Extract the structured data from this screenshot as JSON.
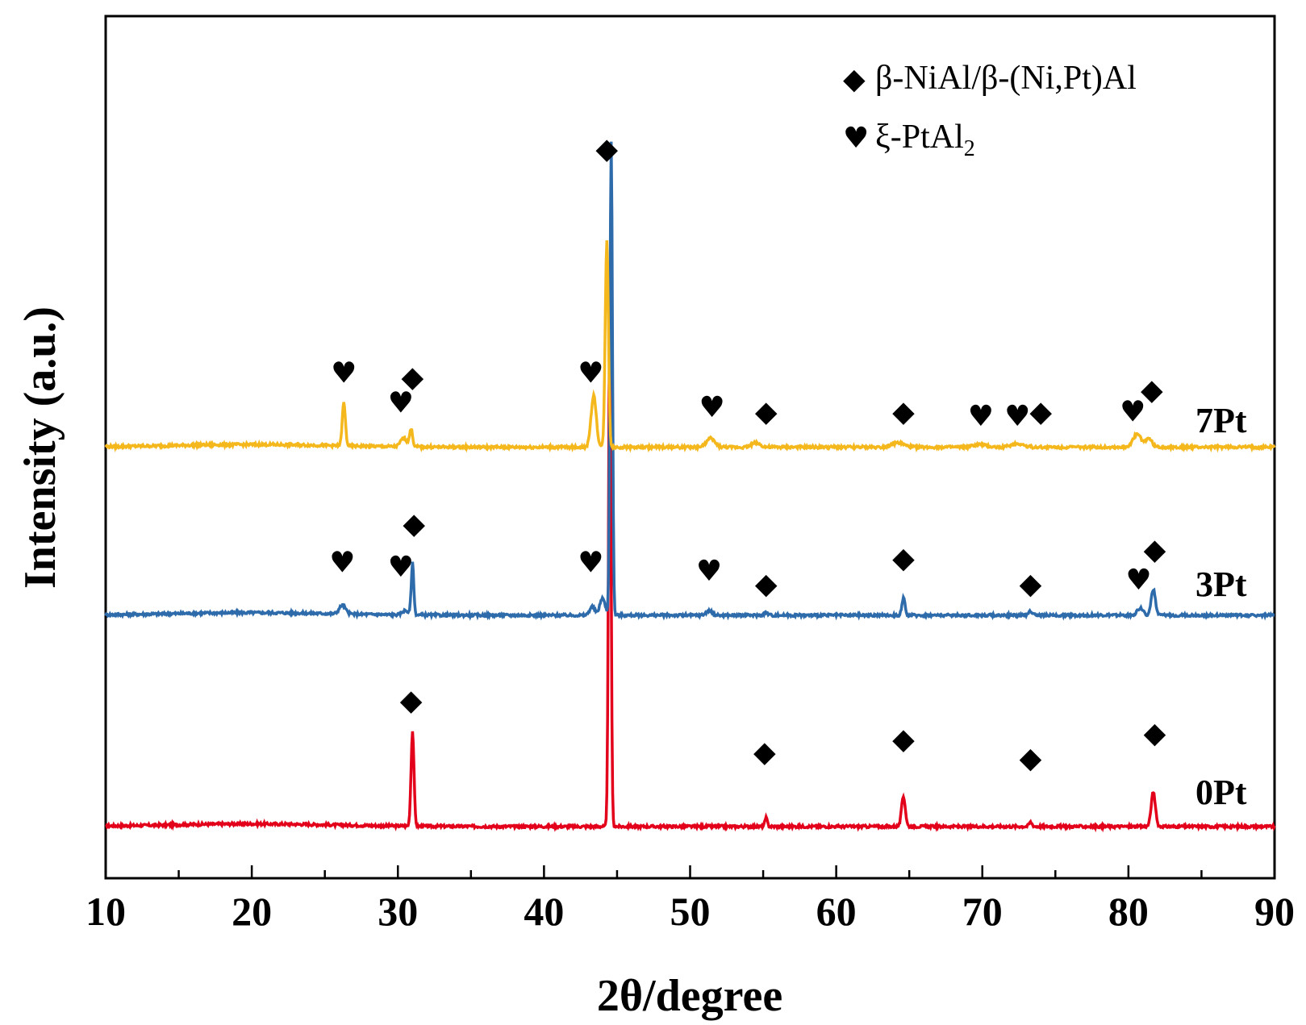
{
  "chart_data": {
    "type": "line",
    "title": "",
    "xlabel": "2θ/degree",
    "ylabel": "Intensity (a.u.)",
    "xlim": [
      10,
      90
    ],
    "ylim": [
      0,
      10
    ],
    "xticks": [
      "10",
      "20",
      "30",
      "40",
      "50",
      "60",
      "70",
      "80",
      "90"
    ],
    "yticks_shown": false,
    "legend": [
      {
        "symbol": "◆",
        "text": "β-NiAl/β-(Ni,Pt)Al",
        "text_sub": ""
      },
      {
        "symbol": "♥",
        "text": "ξ-PtAl",
        "text_sub": "2"
      }
    ],
    "series": [
      {
        "name": "0Pt",
        "color": "#e3001b",
        "baseline": 0.6,
        "peaks": [
          [
            31.0,
            1.1,
            0.14
          ],
          [
            44.5,
            6.0,
            0.12
          ],
          [
            55.2,
            0.1,
            0.12
          ],
          [
            64.6,
            0.35,
            0.18
          ],
          [
            73.3,
            0.05,
            0.15
          ],
          [
            81.7,
            0.4,
            0.2
          ]
        ],
        "markers": [
          {
            "x": 30.9,
            "y": 1.95,
            "symbol": "◆"
          },
          {
            "x": 55.1,
            "y": 1.35,
            "symbol": "◆"
          },
          {
            "x": 64.6,
            "y": 1.5,
            "symbol": "◆"
          },
          {
            "x": 73.3,
            "y": 1.28,
            "symbol": "◆"
          },
          {
            "x": 81.8,
            "y": 1.57,
            "symbol": "◆"
          }
        ]
      },
      {
        "name": "3Pt",
        "color": "#2e6bab",
        "baseline": 3.05,
        "peaks": [
          [
            26.2,
            0.1,
            0.3
          ],
          [
            30.5,
            0.05,
            0.3
          ],
          [
            31.0,
            0.6,
            0.12
          ],
          [
            43.3,
            0.1,
            0.25
          ],
          [
            44.0,
            0.2,
            0.25
          ],
          [
            44.6,
            5.5,
            0.12
          ],
          [
            51.3,
            0.05,
            0.3
          ],
          [
            55.2,
            0.03,
            0.2
          ],
          [
            64.6,
            0.2,
            0.15
          ],
          [
            73.3,
            0.05,
            0.2
          ],
          [
            80.8,
            0.08,
            0.3
          ],
          [
            81.7,
            0.3,
            0.2
          ]
        ],
        "markers": [
          {
            "x": 26.2,
            "y": 3.55,
            "symbol": "♥"
          },
          {
            "x": 30.2,
            "y": 3.5,
            "symbol": "♥"
          },
          {
            "x": 31.1,
            "y": 4.0,
            "symbol": "◆"
          },
          {
            "x": 43.2,
            "y": 3.55,
            "symbol": "♥"
          },
          {
            "x": 51.3,
            "y": 3.45,
            "symbol": "♥"
          },
          {
            "x": 55.2,
            "y": 3.3,
            "symbol": "◆"
          },
          {
            "x": 64.6,
            "y": 3.6,
            "symbol": "◆"
          },
          {
            "x": 73.3,
            "y": 3.3,
            "symbol": "◆"
          },
          {
            "x": 80.7,
            "y": 3.35,
            "symbol": "♥"
          },
          {
            "x": 81.8,
            "y": 3.7,
            "symbol": "◆"
          }
        ]
      },
      {
        "name": "7Pt",
        "color": "#f5b81c",
        "baseline": 5.0,
        "peaks": [
          [
            26.3,
            0.5,
            0.15
          ],
          [
            30.4,
            0.1,
            0.3
          ],
          [
            30.9,
            0.2,
            0.15
          ],
          [
            43.4,
            0.6,
            0.25
          ],
          [
            44.3,
            2.4,
            0.15
          ],
          [
            51.4,
            0.1,
            0.4
          ],
          [
            54.5,
            0.05,
            0.4
          ],
          [
            64.2,
            0.05,
            0.6
          ],
          [
            69.8,
            0.03,
            0.6
          ],
          [
            72.4,
            0.04,
            0.6
          ],
          [
            80.6,
            0.15,
            0.4
          ],
          [
            81.4,
            0.1,
            0.3
          ]
        ],
        "markers": [
          {
            "x": 26.3,
            "y": 5.75,
            "symbol": "♥"
          },
          {
            "x": 30.2,
            "y": 5.4,
            "symbol": "♥"
          },
          {
            "x": 31.0,
            "y": 5.7,
            "symbol": "◆"
          },
          {
            "x": 43.2,
            "y": 5.75,
            "symbol": "♥"
          },
          {
            "x": 44.3,
            "y": 8.35,
            "symbol": "◆"
          },
          {
            "x": 51.5,
            "y": 5.35,
            "symbol": "♥"
          },
          {
            "x": 55.2,
            "y": 5.3,
            "symbol": "◆"
          },
          {
            "x": 64.6,
            "y": 5.3,
            "symbol": "◆"
          },
          {
            "x": 69.9,
            "y": 5.25,
            "symbol": "♥"
          },
          {
            "x": 72.4,
            "y": 5.25,
            "symbol": "♥"
          },
          {
            "x": 74.0,
            "y": 5.3,
            "symbol": "◆"
          },
          {
            "x": 80.3,
            "y": 5.3,
            "symbol": "♥"
          },
          {
            "x": 81.6,
            "y": 5.55,
            "symbol": "◆"
          }
        ]
      }
    ],
    "series_labels": [
      "0Pt",
      "3Pt",
      "7Pt"
    ]
  }
}
